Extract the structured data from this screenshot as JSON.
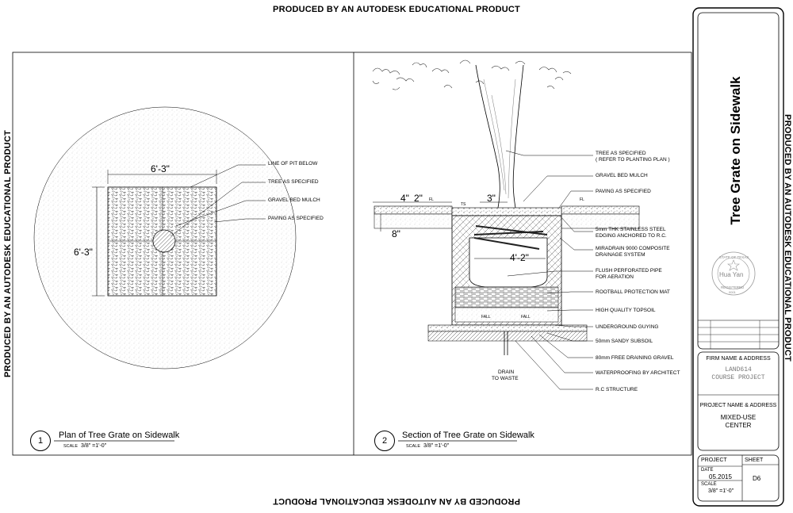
{
  "edu_notice": "PRODUCED BY AN AUTODESK EDUCATIONAL PRODUCT",
  "plan": {
    "dim_top": "6'-3\"",
    "dim_left": "6'-3\"",
    "notes": [
      "LINE OF PIT BELOW",
      "TREE AS SPECIFIED",
      "GRAVEL BED MULCH",
      "PAVING AS SPECIFIED"
    ],
    "view_number": "1",
    "view_title": "Plan of Tree Grate on Sidewalk",
    "scale_label": "SCALE",
    "scale_value": "3/8\" =1'-0\""
  },
  "section": {
    "dims": {
      "d1": "4\"",
      "d2": "2\"",
      "d3": "3\"",
      "d4": "8\"",
      "d5": "4'-2\""
    },
    "small_labels": {
      "fl_left": "FL",
      "fl_right": "FL",
      "ts": "TS",
      "fall_left": "FALL",
      "fall_right": "FALL"
    },
    "notes": [
      "TREE AS SPECIFIED",
      "( REFER TO PLANTING PLAN )",
      "GRAVEL BED MULCH",
      "PAVING AS SPECIFIED",
      "5mm THK STAINLESS STEEL",
      "EDGING ANCHORED TO R.C.",
      "MIRADRAIN 9000 COMPOSITE",
      "DRAINAGE SYSTEM",
      "FLUSH PERFORATED PIPE",
      "FOR AERATION",
      "ROOTBALL PROTECTION MAT",
      "HIGH QUALITY TOPSOIL",
      "UNDERGROUND GUYING",
      "50mm SANDY SUBSOIL",
      "80mm FREE DRAINING GRAVEL",
      "WATERPROOFING BY ARCHITECT",
      "R.C STRUCTURE"
    ],
    "drain_label_1": "DRAIN",
    "drain_label_2": "TO WASTE",
    "view_number": "2",
    "view_title": "Section of Tree Grate on Sidewalk",
    "scale_label": "SCALE",
    "scale_value": "3/8\" =1'-0\""
  },
  "title_block": {
    "sheet_title": "Tree Grate on Sidewalk",
    "stamp_top": "STATE OF TEXAS",
    "stamp_name": "Hua Yan",
    "stamp_bottom": "REGISTERED",
    "stamp_number": "0001",
    "firm_label": "FIRM NAME & ADDRESS",
    "firm_line1": "LAND614",
    "firm_line2": "COURSE PROJECT",
    "project_label": "PROJECT NAME & ADDRESS",
    "project_line1": "MIXED-USE",
    "project_line2": "CENTER",
    "project_cell": "PROJECT",
    "sheet_cell": "SHEET",
    "date_label": "DATE",
    "date_value": "05.2015",
    "scale_label": "SCALE",
    "scale_value": "3/8\" =1'-0\"",
    "sheet_value": "D6"
  }
}
